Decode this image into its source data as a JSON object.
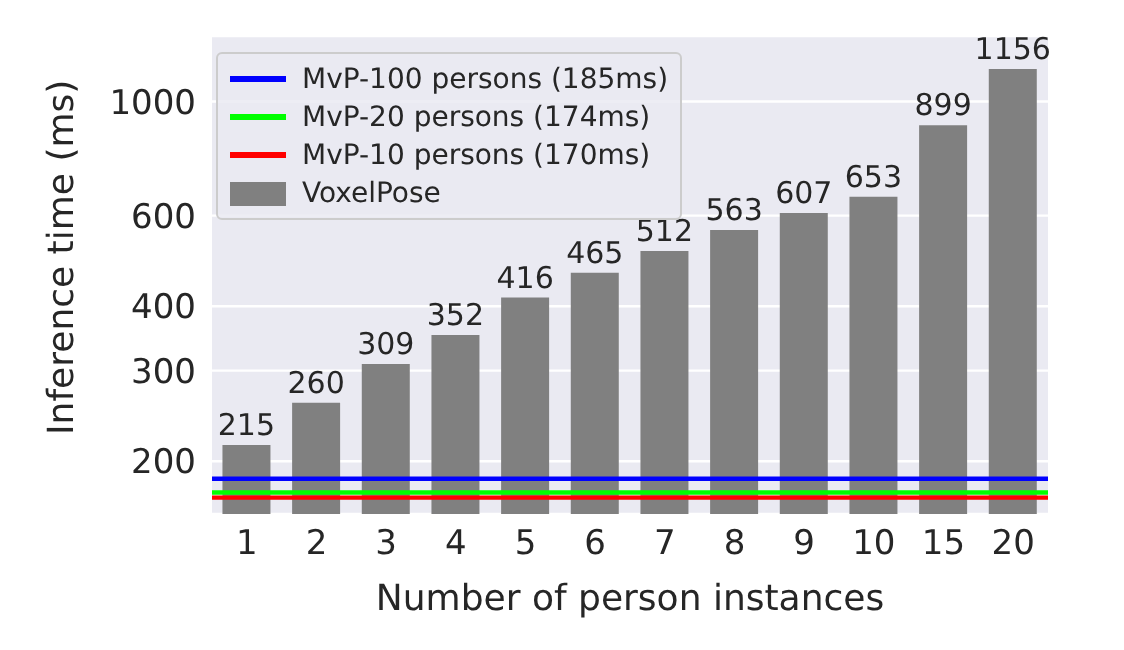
{
  "chart_data": {
    "type": "bar",
    "xlabel": "Number of person instances",
    "ylabel": "Inference time (ms)",
    "categories": [
      "1",
      "2",
      "3",
      "4",
      "5",
      "6",
      "7",
      "8",
      "9",
      "10",
      "15",
      "20"
    ],
    "series": [
      {
        "name": "VoxelPose",
        "color": "#808080",
        "values": [
          215,
          260,
          309,
          352,
          416,
          465,
          512,
          563,
          607,
          653,
          899,
          1156
        ]
      }
    ],
    "data_labels": true,
    "log": true,
    "ylim": [
      158,
      1340
    ],
    "yticks": [
      200,
      300,
      400,
      600,
      1000
    ],
    "ref_lines": [
      {
        "axis": "y",
        "value": 185,
        "label": "MvP-100 persons (185ms)",
        "color": "#0000ff"
      },
      {
        "axis": "y",
        "value": 174,
        "label": "MvP-20 persons (174ms)",
        "color": "#00ff00"
      },
      {
        "axis": "y",
        "value": 170,
        "label": "MvP-10 persons (170ms)",
        "color": "#ff0000"
      }
    ],
    "grid": "y",
    "legend": "top left"
  }
}
